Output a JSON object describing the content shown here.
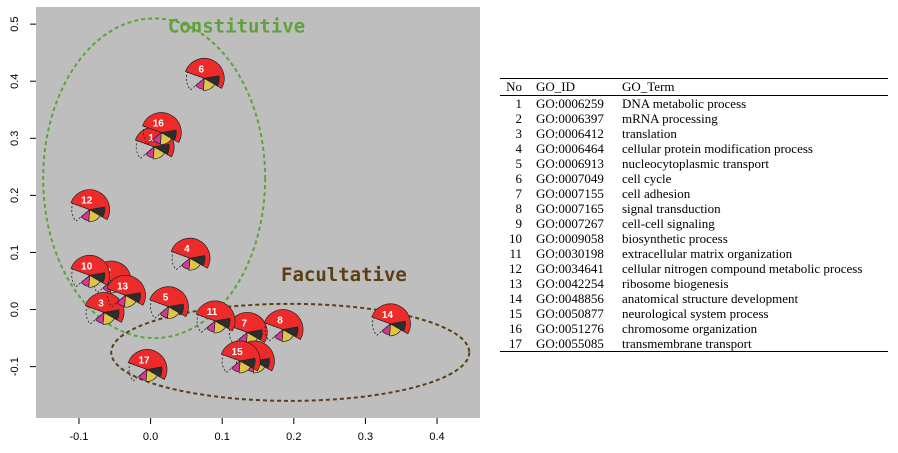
{
  "chart_data": {
    "type": "scatter",
    "subtype": "pie-glyph scatter",
    "title": "",
    "xlabel": "",
    "ylabel": "",
    "xlim": [
      -0.16,
      0.46
    ],
    "ylim": [
      -0.19,
      0.53
    ],
    "x_ticks": [
      -0.1,
      0.0,
      0.1,
      0.2,
      0.3,
      0.4
    ],
    "x_tick_labels": [
      "-0.1",
      "0.0",
      "0.1",
      "0.2",
      "0.3",
      "0.4"
    ],
    "y_ticks": [
      -0.1,
      0.0,
      0.1,
      0.2,
      0.3,
      0.4,
      0.5
    ],
    "y_tick_labels": [
      "-0.1",
      "0.0",
      "0.1",
      "0.2",
      "0.3",
      "0.4",
      "0.5"
    ],
    "grid": false,
    "background_color": "#bebebe",
    "slice_colors": [
      "#ee2b2b",
      "#dfc545",
      "#d3389a",
      "#2d2d2d"
    ],
    "points": [
      {
        "label": "1",
        "x": 0.005,
        "y": 0.285
      },
      {
        "label": "2",
        "x": -0.055,
        "y": 0.05
      },
      {
        "label": "3",
        "x": -0.065,
        "y": -0.005
      },
      {
        "label": "4",
        "x": 0.055,
        "y": 0.09
      },
      {
        "label": "5",
        "x": 0.025,
        "y": 0.005
      },
      {
        "label": "6",
        "x": 0.075,
        "y": 0.405
      },
      {
        "label": "7",
        "x": 0.135,
        "y": -0.04
      },
      {
        "label": "8",
        "x": 0.185,
        "y": -0.035
      },
      {
        "label": "9",
        "x": 0.145,
        "y": -0.09
      },
      {
        "label": "10",
        "x": -0.085,
        "y": 0.06
      },
      {
        "label": "11",
        "x": 0.09,
        "y": -0.02
      },
      {
        "label": "12",
        "x": -0.085,
        "y": 0.175
      },
      {
        "label": "13",
        "x": -0.035,
        "y": 0.025
      },
      {
        "label": "14",
        "x": 0.335,
        "y": -0.025
      },
      {
        "label": "15",
        "x": 0.125,
        "y": -0.09
      },
      {
        "label": "16",
        "x": 0.015,
        "y": 0.31
      },
      {
        "label": "17",
        "x": -0.005,
        "y": -0.105
      }
    ],
    "annotations": [
      {
        "text": "Constitutive",
        "x": 0.12,
        "y": 0.485,
        "color": "#5ea33a"
      },
      {
        "text": "Facultative",
        "x": 0.27,
        "y": 0.05,
        "color": "#5a3f12"
      }
    ],
    "ellipses": [
      {
        "group": "Constitutive",
        "cx": 0.005,
        "cy": 0.23,
        "rx": 0.155,
        "ry": 0.28,
        "color": "#5ea33a"
      },
      {
        "group": "Facultative",
        "cx": 0.195,
        "cy": -0.075,
        "rx": 0.25,
        "ry": 0.085,
        "color": "#5a3f12"
      }
    ]
  },
  "table": {
    "headers": [
      "No",
      "GO_ID",
      "GO_Term"
    ],
    "rows": [
      [
        "1",
        "GO:0006259",
        "DNA metabolic process"
      ],
      [
        "2",
        "GO:0006397",
        "mRNA processing"
      ],
      [
        "3",
        "GO:0006412",
        "translation"
      ],
      [
        "4",
        "GO:0006464",
        "cellular protein modification process"
      ],
      [
        "5",
        "GO:0006913",
        "nucleocytoplasmic transport"
      ],
      [
        "6",
        "GO:0007049",
        "cell cycle"
      ],
      [
        "7",
        "GO:0007155",
        "cell adhesion"
      ],
      [
        "8",
        "GO:0007165",
        "signal transduction"
      ],
      [
        "9",
        "GO:0007267",
        "cell-cell signaling"
      ],
      [
        "10",
        "GO:0009058",
        "biosynthetic process"
      ],
      [
        "11",
        "GO:0030198",
        "extracellular matrix organization"
      ],
      [
        "12",
        "GO:0034641",
        "cellular nitrogen compound metabolic process"
      ],
      [
        "13",
        "GO:0042254",
        "ribosome biogenesis"
      ],
      [
        "14",
        "GO:0048856",
        "anatomical structure development"
      ],
      [
        "15",
        "GO:0050877",
        "neurological system process"
      ],
      [
        "16",
        "GO:0051276",
        "chromosome organization"
      ],
      [
        "17",
        "GO:0055085",
        "transmembrane transport"
      ]
    ]
  }
}
